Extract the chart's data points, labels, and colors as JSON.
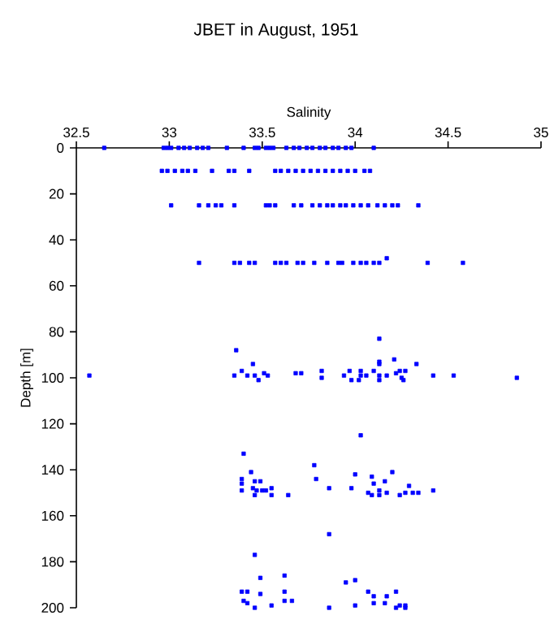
{
  "chart_data": {
    "type": "scatter",
    "title": "JBET in August, 1951",
    "xlabel": "Salinity",
    "ylabel": "Depth [m]",
    "xlim": [
      32.5,
      35
    ],
    "xticks": [
      32.5,
      33,
      33.5,
      34,
      34.5,
      35
    ],
    "ylim": [
      200,
      0
    ],
    "yticks": [
      0,
      20,
      40,
      60,
      80,
      100,
      120,
      140,
      160,
      180,
      200
    ],
    "color": "#0000ff",
    "marker": "square",
    "x": [
      32.65,
      32.97,
      32.99,
      33.01,
      33.05,
      33.08,
      33.11,
      33.15,
      33.18,
      33.21,
      33.31,
      33.4,
      33.46,
      33.48,
      33.52,
      33.54,
      33.56,
      33.63,
      33.67,
      33.7,
      33.74,
      33.77,
      33.81,
      33.84,
      33.88,
      33.91,
      33.95,
      33.98,
      34.1,
      32.96,
      32.99,
      33.03,
      33.07,
      33.1,
      33.14,
      33.23,
      33.32,
      33.35,
      33.43,
      33.57,
      33.6,
      33.64,
      33.68,
      33.72,
      33.76,
      33.8,
      33.84,
      33.88,
      33.92,
      33.96,
      34.0,
      34.05,
      34.08,
      33.01,
      33.16,
      33.21,
      33.25,
      33.28,
      33.35,
      33.52,
      33.54,
      33.57,
      33.67,
      33.71,
      33.77,
      33.81,
      33.85,
      33.88,
      33.92,
      33.95,
      33.99,
      34.03,
      34.07,
      34.12,
      34.16,
      34.2,
      34.23,
      34.34,
      33.16,
      33.35,
      33.38,
      33.43,
      33.46,
      33.57,
      33.6,
      33.63,
      33.69,
      33.72,
      33.78,
      33.85,
      33.91,
      33.93,
      33.99,
      34.03,
      34.06,
      34.1,
      34.13,
      34.17,
      34.39,
      34.58,
      32.57,
      33.36,
      33.35,
      33.39,
      33.42,
      33.45,
      33.46,
      33.48,
      33.51,
      33.53,
      33.68,
      33.71,
      33.82,
      33.82,
      33.94,
      33.97,
      33.98,
      34.02,
      34.03,
      34.03,
      34.06,
      34.1,
      34.13,
      34.13,
      34.13,
      34.13,
      34.13,
      34.17,
      34.21,
      34.22,
      34.24,
      34.25,
      34.27,
      34.26,
      34.33,
      34.42,
      34.53,
      34.87,
      34.03,
      33.4,
      33.44,
      33.78,
      33.39,
      33.39,
      33.46,
      33.49,
      33.39,
      33.45,
      33.47,
      33.5,
      33.52,
      33.55,
      33.46,
      33.55,
      33.64,
      33.79,
      33.86,
      34.0,
      33.98,
      34.09,
      34.1,
      34.2,
      34.16,
      34.07,
      34.09,
      34.13,
      34.17,
      34.13,
      34.24,
      34.27,
      34.29,
      34.31,
      34.34,
      34.42,
      33.86,
      33.46,
      33.49,
      33.62,
      33.39,
      33.42,
      33.49,
      33.62,
      33.4,
      33.42,
      33.46,
      33.55,
      33.62,
      33.66,
      33.86,
      33.95,
      34.0,
      34.0,
      34.07,
      34.1,
      34.1,
      34.16,
      34.17,
      34.22,
      34.24,
      34.27,
      34.22,
      34.27
    ],
    "values": [
      0,
      0,
      0,
      0,
      0,
      0,
      0,
      0,
      0,
      0,
      0,
      0,
      0,
      0,
      0,
      0,
      0,
      0,
      0,
      0,
      0,
      0,
      0,
      0,
      0,
      0,
      0,
      0,
      0,
      10,
      10,
      10,
      10,
      10,
      10,
      10,
      10,
      10,
      10,
      10,
      10,
      10,
      10,
      10,
      10,
      10,
      10,
      10,
      10,
      10,
      10,
      10,
      10,
      25,
      25,
      25,
      25,
      25,
      25,
      25,
      25,
      25,
      25,
      25,
      25,
      25,
      25,
      25,
      25,
      25,
      25,
      25,
      25,
      25,
      25,
      25,
      25,
      25,
      50,
      50,
      50,
      50,
      50,
      50,
      50,
      50,
      50,
      50,
      50,
      50,
      50,
      50,
      50,
      50,
      50,
      50,
      50,
      48,
      50,
      50,
      99,
      88,
      99,
      97,
      99,
      94,
      99,
      101,
      98,
      99,
      98,
      98,
      97,
      100,
      99,
      97,
      101,
      101,
      97,
      99,
      99,
      97,
      83,
      93,
      94,
      99,
      101,
      99,
      92,
      98,
      97,
      100,
      97,
      101,
      94,
      99,
      99,
      100,
      125,
      133,
      141,
      138,
      144,
      146,
      145,
      145,
      149,
      148,
      149,
      149,
      149,
      148,
      151,
      151,
      151,
      144,
      148,
      142,
      148,
      143,
      146,
      141,
      145,
      150,
      151,
      149,
      150,
      151,
      151,
      150,
      147,
      150,
      150,
      149,
      168,
      177,
      187,
      186,
      193,
      193,
      194,
      193,
      197,
      198,
      200,
      199,
      197,
      197,
      200,
      189,
      188,
      199,
      193,
      195,
      198,
      198,
      195,
      193,
      199,
      199,
      200,
      200
    ]
  }
}
